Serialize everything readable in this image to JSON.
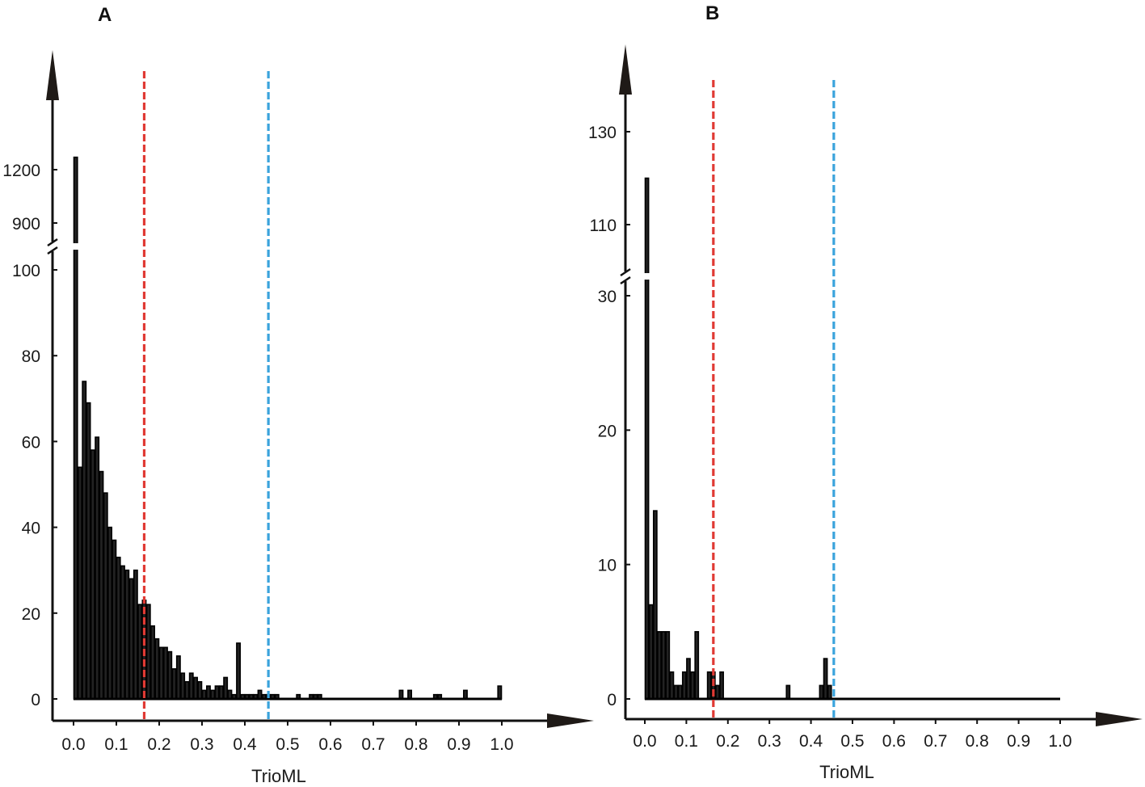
{
  "chart_data": [
    {
      "panel": "A",
      "type": "bar",
      "xlabel": "TrioML",
      "ylabel": "",
      "x_ticks": [
        "0.0",
        "0.1",
        "0.2",
        "0.3",
        "0.4",
        "0.5",
        "0.6",
        "0.7",
        "0.8",
        "0.9",
        "1.0"
      ],
      "xlim": [
        0,
        1.0
      ],
      "bin_width": 0.01,
      "y_lower_ticks": [
        "0",
        "20",
        "40",
        "60",
        "80",
        "100"
      ],
      "y_upper_ticks": [
        "900",
        "1200"
      ],
      "y_break": true,
      "bins": [
        0.0,
        0.01,
        0.02,
        0.03,
        0.04,
        0.05,
        0.06,
        0.07,
        0.08,
        0.09,
        0.1,
        0.11,
        0.12,
        0.13,
        0.14,
        0.15,
        0.16,
        0.17,
        0.18,
        0.19,
        0.2,
        0.21,
        0.22,
        0.23,
        0.24,
        0.25,
        0.26,
        0.27,
        0.28,
        0.29,
        0.3,
        0.31,
        0.32,
        0.33,
        0.34,
        0.35,
        0.36,
        0.37,
        0.38,
        0.39,
        0.4,
        0.41,
        0.42,
        0.43,
        0.44,
        0.45,
        0.46,
        0.47,
        0.48,
        0.49,
        0.5,
        0.51,
        0.52,
        0.53,
        0.54,
        0.55,
        0.56,
        0.57,
        0.58,
        0.59,
        0.6,
        0.61,
        0.62,
        0.63,
        0.64,
        0.65,
        0.66,
        0.67,
        0.68,
        0.69,
        0.7,
        0.71,
        0.72,
        0.73,
        0.74,
        0.75,
        0.76,
        0.77,
        0.78,
        0.79,
        0.8,
        0.81,
        0.82,
        0.83,
        0.84,
        0.85,
        0.86,
        0.87,
        0.88,
        0.89,
        0.9,
        0.91,
        0.92,
        0.93,
        0.94,
        0.95,
        0.96,
        0.97,
        0.98,
        0.99
      ],
      "values": [
        1270,
        54,
        74,
        69,
        58,
        61,
        53,
        48,
        40,
        37,
        33,
        31,
        30,
        28,
        30,
        22,
        23,
        22,
        17,
        14,
        12,
        12,
        11,
        7,
        10,
        6,
        4,
        6,
        5,
        4,
        2,
        3,
        2,
        3,
        3,
        5,
        2,
        1,
        13,
        1,
        1,
        1,
        1,
        2,
        1,
        1,
        1,
        1,
        0,
        0,
        0,
        0,
        1,
        0,
        0,
        1,
        1,
        1,
        0,
        0,
        0,
        0,
        0,
        0,
        0,
        0,
        0,
        0,
        0,
        0,
        0,
        0,
        0,
        0,
        0,
        0,
        2,
        0,
        2,
        0,
        0,
        0,
        0,
        0,
        1,
        1,
        0,
        0,
        0,
        0,
        0,
        2,
        0,
        0,
        0,
        0,
        0,
        0,
        0,
        3
      ],
      "ref_lines": [
        {
          "x": 0.165,
          "color": "#e03a34"
        },
        {
          "x": 0.455,
          "color": "#3aa3dc"
        }
      ]
    },
    {
      "panel": "B",
      "type": "bar",
      "xlabel": "TrioML",
      "ylabel": "",
      "x_ticks": [
        "0.0",
        "0.1",
        "0.2",
        "0.3",
        "0.4",
        "0.5",
        "0.6",
        "0.7",
        "0.8",
        "0.9",
        "1.0"
      ],
      "xlim": [
        0,
        1.0
      ],
      "bin_width": 0.01,
      "y_lower_ticks": [
        "0",
        "10",
        "20",
        "30"
      ],
      "y_upper_ticks": [
        "110",
        "130"
      ],
      "y_break": true,
      "bins": [
        0.0,
        0.01,
        0.02,
        0.03,
        0.04,
        0.05,
        0.06,
        0.07,
        0.08,
        0.09,
        0.1,
        0.11,
        0.12,
        0.13,
        0.14,
        0.15,
        0.16,
        0.17,
        0.18,
        0.19,
        0.2,
        0.21,
        0.22,
        0.23,
        0.24,
        0.25,
        0.26,
        0.27,
        0.28,
        0.29,
        0.3,
        0.31,
        0.32,
        0.33,
        0.34,
        0.35,
        0.36,
        0.37,
        0.38,
        0.39,
        0.4,
        0.41,
        0.42,
        0.43,
        0.44,
        0.45,
        0.46,
        0.47,
        0.48,
        0.49
      ],
      "values": [
        120,
        7,
        14,
        5,
        5,
        5,
        2,
        1,
        1,
        2,
        3,
        2,
        5,
        0,
        0,
        2,
        2,
        1,
        2,
        0,
        0,
        0,
        0,
        0,
        0,
        0,
        0,
        0,
        0,
        0,
        0,
        0,
        0,
        0,
        1,
        0,
        0,
        0,
        0,
        0,
        0,
        0,
        1,
        3,
        1,
        0,
        0,
        0,
        0,
        0
      ],
      "ref_lines": [
        {
          "x": 0.165,
          "color": "#e03a34"
        },
        {
          "x": 0.455,
          "color": "#3aa3dc"
        }
      ]
    }
  ]
}
